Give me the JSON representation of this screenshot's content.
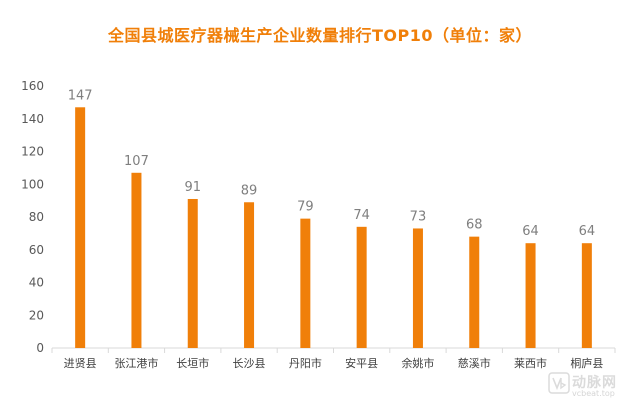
{
  "chart_data": {
    "type": "bar",
    "title": "全国县城医疗器械生产企业数量排行TOP10（单位：家）",
    "categories": [
      "进贤县",
      "张江港市",
      "长垣市",
      "长沙县",
      "丹阳市",
      "安平县",
      "余姚市",
      "慈溪市",
      "莱西市",
      "桐庐县"
    ],
    "values": [
      147,
      107,
      91,
      89,
      79,
      74,
      73,
      68,
      64,
      64
    ],
    "ylim": [
      0,
      160
    ],
    "yticks": [
      0,
      20,
      40,
      60,
      80,
      100,
      120,
      140,
      160
    ],
    "xlabel": "",
    "ylabel": "",
    "grid": false,
    "legend": "none",
    "bar_color": "#f07f09",
    "title_color": "#f07f09"
  },
  "watermark": {
    "name": "动脉网",
    "url": "vcbeat.top"
  }
}
